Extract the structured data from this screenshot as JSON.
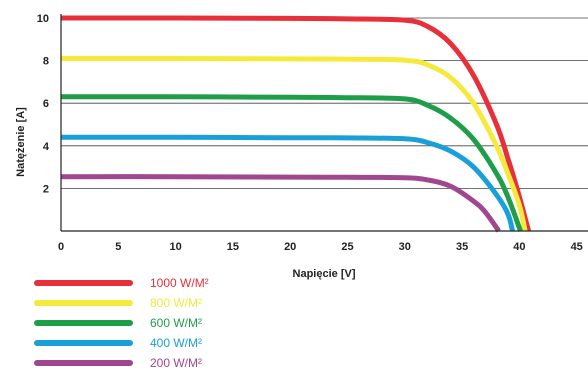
{
  "chart_data": {
    "type": "line",
    "title": "",
    "xlabel": "Napięcie [V]",
    "ylabel": "Natężenie [A]",
    "xlim": [
      0,
      47
    ],
    "ylim": [
      0,
      10
    ],
    "x_ticks": [
      "0",
      "5",
      "10",
      "15",
      "20",
      "25",
      "30",
      "35",
      "40",
      "45"
    ],
    "y_ticks": [
      "2",
      "4",
      "6",
      "8",
      "10"
    ],
    "grid": "horizontal",
    "legend_position": "bottom-left",
    "series": [
      {
        "name": "1000 W/M²",
        "color": "#e8303a",
        "x": [
          0,
          10,
          20,
          25,
          30,
          32,
          34,
          36,
          38,
          39,
          40,
          40.8
        ],
        "y": [
          10.0,
          10.0,
          9.98,
          9.96,
          9.9,
          9.6,
          8.8,
          7.3,
          5.0,
          3.4,
          1.6,
          0
        ]
      },
      {
        "name": "800 W/M²",
        "color": "#f5ea3c",
        "x": [
          0,
          10,
          20,
          25,
          30,
          32,
          34,
          36,
          38,
          39,
          40,
          40.5
        ],
        "y": [
          8.1,
          8.1,
          8.08,
          8.07,
          8.02,
          7.8,
          7.2,
          6.0,
          4.0,
          2.7,
          1.2,
          0
        ]
      },
      {
        "name": "600 W/M²",
        "color": "#1f9e4a",
        "x": [
          0,
          10,
          20,
          25,
          30,
          32,
          34,
          36,
          38,
          39,
          40.1
        ],
        "y": [
          6.3,
          6.3,
          6.28,
          6.26,
          6.2,
          5.9,
          5.3,
          4.3,
          2.7,
          1.6,
          0
        ]
      },
      {
        "name": "400 W/M²",
        "color": "#1aa0d8",
        "x": [
          0,
          10,
          20,
          25,
          30,
          32,
          34,
          36,
          38,
          39,
          39.4
        ],
        "y": [
          4.4,
          4.4,
          4.38,
          4.37,
          4.33,
          4.15,
          3.75,
          3.0,
          1.7,
          0.8,
          0
        ]
      },
      {
        "name": "200 W/M²",
        "color": "#a0478f",
        "x": [
          0,
          10,
          20,
          25,
          30,
          32,
          34,
          36,
          37,
          38.2
        ],
        "y": [
          2.55,
          2.55,
          2.53,
          2.52,
          2.5,
          2.4,
          2.1,
          1.4,
          0.9,
          0
        ]
      }
    ]
  }
}
